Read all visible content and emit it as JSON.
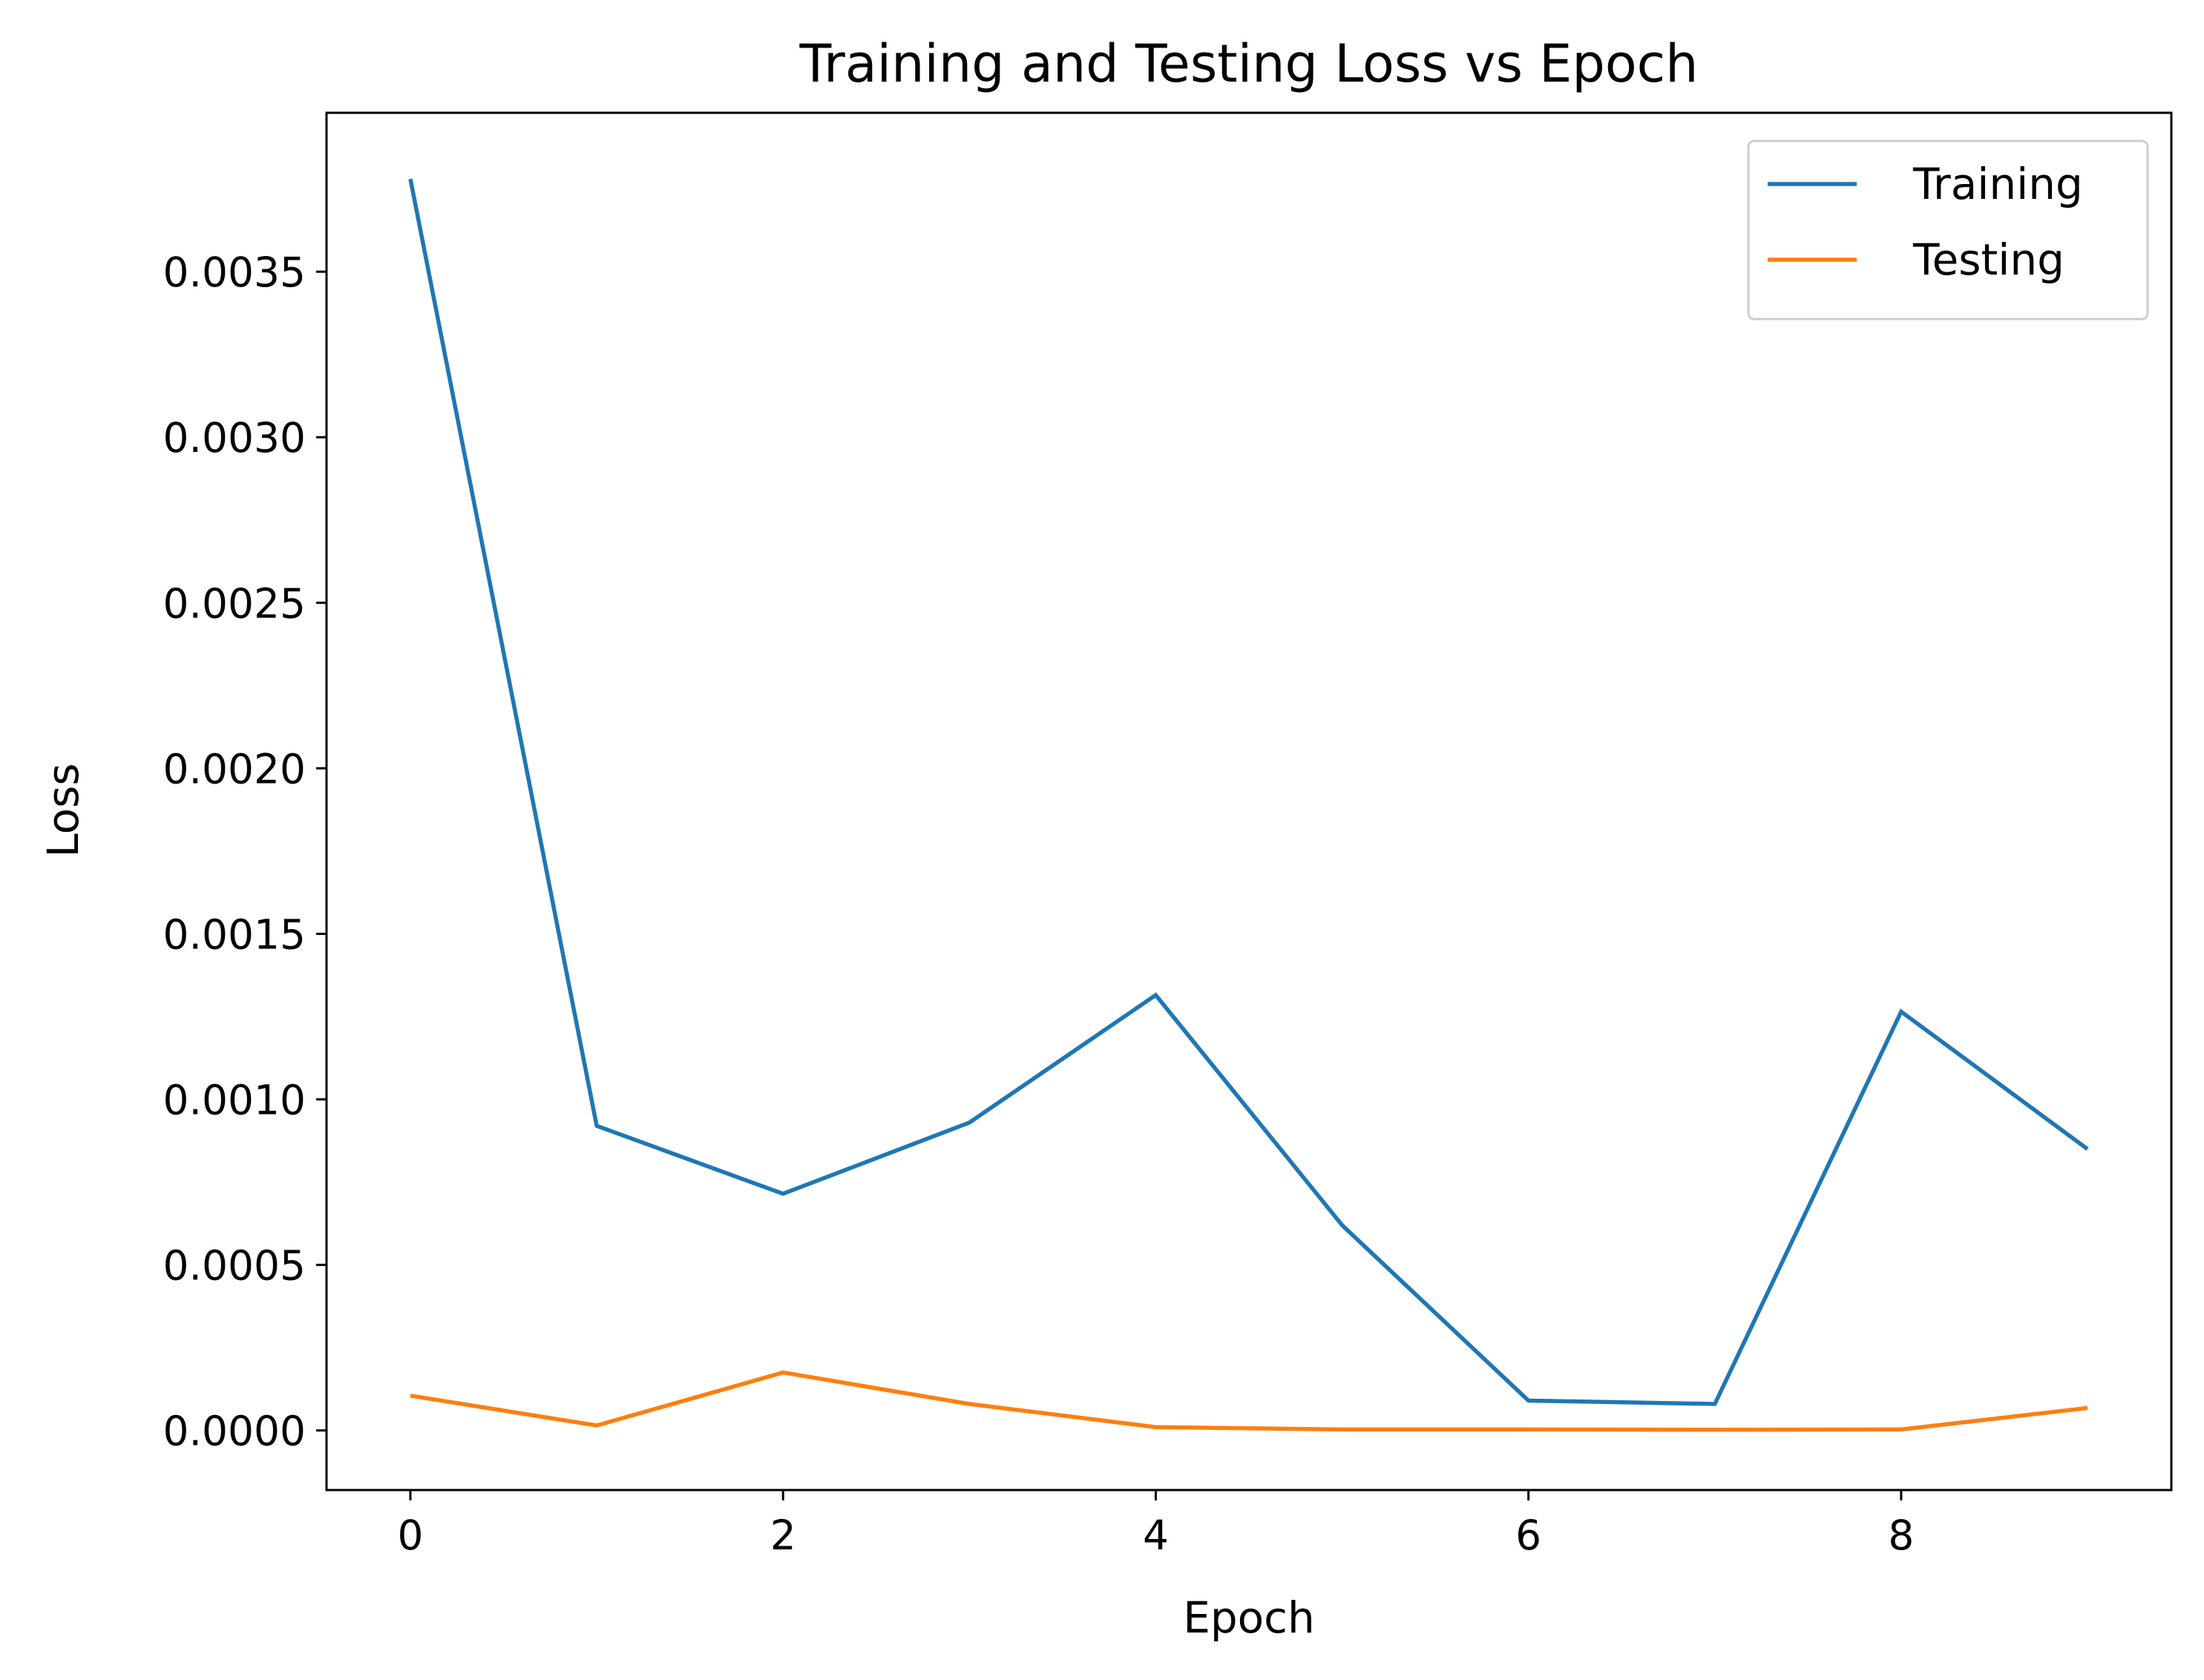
{
  "chart_data": {
    "type": "line",
    "title": "Training and Testing Loss vs Epoch",
    "xlabel": "Epoch",
    "ylabel": "Loss",
    "x": [
      0,
      1,
      2,
      3,
      4,
      5,
      6,
      7,
      8,
      9
    ],
    "xlim": [
      -0.45,
      9.45
    ],
    "ylim": [
      -0.00018,
      0.00398
    ],
    "xticks": [
      0,
      2,
      4,
      6,
      8
    ],
    "xtick_labels": [
      "0",
      "2",
      "4",
      "6",
      "8"
    ],
    "yticks": [
      0,
      0.0005,
      0.001,
      0.0015,
      0.002,
      0.0025,
      0.003,
      0.0035
    ],
    "ytick_labels": [
      "0.0000",
      "0.0005",
      "0.0010",
      "0.0015",
      "0.0020",
      "0.0025",
      "0.0030",
      "0.0035"
    ],
    "grid": false,
    "legend_position": "top-right",
    "series": [
      {
        "name": "Training",
        "color": "#1f77b4",
        "values": [
          0.00378,
          0.00092,
          0.000715,
          0.00093,
          0.001315,
          0.00062,
          9e-05,
          8e-05,
          0.001265,
          0.00085
        ]
      },
      {
        "name": "Testing",
        "color": "#ff7f0e",
        "values": [
          0.000105,
          1.5e-05,
          0.000175,
          8e-05,
          1e-05,
          3e-06,
          3e-06,
          2e-06,
          3e-06,
          6.8e-05
        ]
      }
    ]
  }
}
